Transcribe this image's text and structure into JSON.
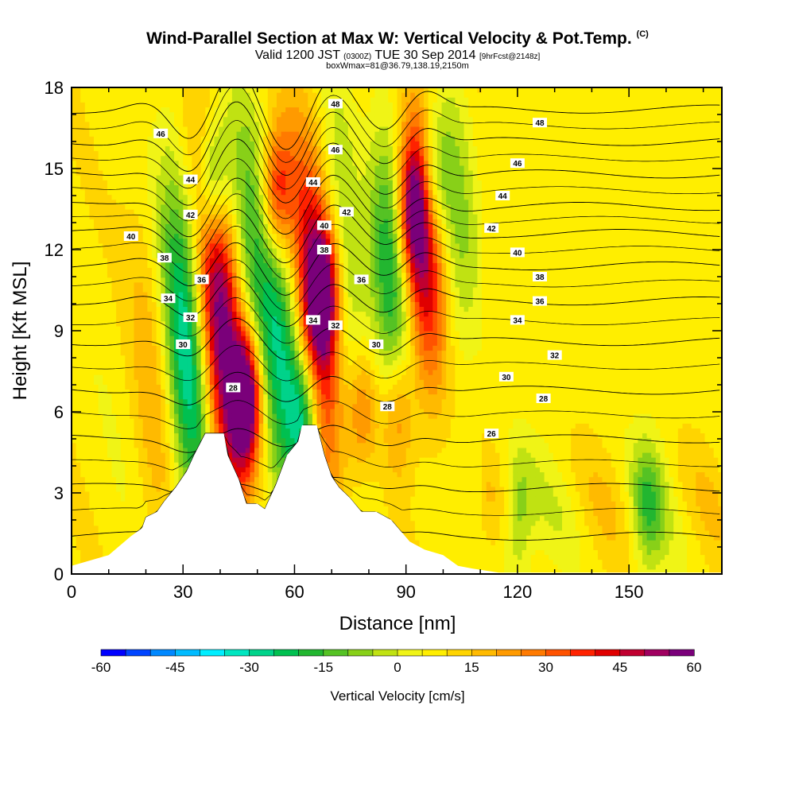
{
  "chart_data": {
    "type": "heatmap",
    "title": "Wind-Parallel Section at Max W: Vertical Velocity & Pot.Temp.",
    "title_suffix": "(C)",
    "subtitle_valid": "Valid 1200 JST",
    "subtitle_utc": "(0300Z)",
    "subtitle_date": "TUE 30 Sep 2014",
    "subtitle_fcst": "[9hrFcst@2148z]",
    "subtitle2": "boxWmax=81@36.79,138.19,2150m",
    "xlabel": "Distance [nm]",
    "ylabel": "Height [Kft MSL]",
    "xlim": [
      0,
      175
    ],
    "ylim": [
      0,
      18
    ],
    "x_ticks": [
      "0",
      "30",
      "60",
      "90",
      "120",
      "150"
    ],
    "y_ticks": [
      "0",
      "3",
      "6",
      "9",
      "12",
      "15",
      "18"
    ],
    "colorbar": {
      "label": "Vertical Velocity [cm/s]",
      "min": -60,
      "max": 60,
      "step": 5,
      "tick_labels": [
        "-60",
        "-45",
        "-30",
        "-15",
        "0",
        "15",
        "30",
        "45",
        "60"
      ],
      "colors": [
        "#0000ff",
        "#0044ff",
        "#0088ff",
        "#00bbff",
        "#00eeff",
        "#00e6c0",
        "#00d38a",
        "#00c050",
        "#22b630",
        "#55c224",
        "#88d018",
        "#c0e212",
        "#f0f416",
        "#ffee00",
        "#ffd400",
        "#ffba00",
        "#ff9a00",
        "#ff7a00",
        "#ff5200",
        "#ff2200",
        "#e00000",
        "#c00030",
        "#a00060",
        "#7a007a"
      ]
    },
    "terrain_kft": [
      [
        0,
        0.3
      ],
      [
        10,
        0.7
      ],
      [
        16,
        1.4
      ],
      [
        19,
        1.7
      ],
      [
        20,
        2.1
      ],
      [
        23,
        2.3
      ],
      [
        25,
        2.7
      ],
      [
        28,
        3.2
      ],
      [
        31,
        3.8
      ],
      [
        33,
        4.4
      ],
      [
        36,
        5.2
      ],
      [
        41,
        5.2
      ],
      [
        42,
        4.4
      ],
      [
        45,
        3.5
      ],
      [
        47,
        2.6
      ],
      [
        50,
        2.6
      ],
      [
        52,
        2.4
      ],
      [
        55,
        3.3
      ],
      [
        58,
        4.4
      ],
      [
        61,
        4.9
      ],
      [
        62,
        5.5
      ],
      [
        66,
        5.5
      ],
      [
        68,
        4.4
      ],
      [
        70,
        3.6
      ],
      [
        72,
        3.2
      ],
      [
        75,
        2.8
      ],
      [
        78,
        2.3
      ],
      [
        82,
        2.3
      ],
      [
        86,
        2.0
      ],
      [
        91,
        1.2
      ],
      [
        95,
        0.9
      ],
      [
        100,
        0.7
      ],
      [
        104,
        0.3
      ],
      [
        108,
        0.2
      ],
      [
        115,
        0.05
      ],
      [
        175,
        0.05
      ]
    ],
    "w_field": {
      "background_cm_s": 8,
      "features": [
        {
          "x": 47,
          "z": 6.5,
          "w": 58
        },
        {
          "x": 38,
          "z": 14.5,
          "w": -35
        },
        {
          "x": 55,
          "z": 14,
          "w": 35
        },
        {
          "x": 68,
          "z": 10.5,
          "w": 38
        },
        {
          "x": 63,
          "z": 6,
          "w": -30
        },
        {
          "x": 78,
          "z": 6,
          "w": 22
        },
        {
          "x": 88,
          "z": 6,
          "w": 20
        },
        {
          "x": 92,
          "z": 13.5,
          "w": 35
        },
        {
          "x": 97,
          "z": 14.5,
          "w": -25
        },
        {
          "x": 120,
          "z": 2,
          "w": -18
        },
        {
          "x": 155,
          "z": 2.5,
          "w": -18
        }
      ]
    },
    "theta_contours": {
      "units": "C",
      "levels": [
        26,
        28,
        30,
        32,
        34,
        36,
        38,
        40,
        42,
        44,
        46,
        48
      ],
      "labels": [
        {
          "x": 43.5,
          "z": 6.9,
          "text": "28"
        },
        {
          "x": 85,
          "z": 6.2,
          "text": "28"
        },
        {
          "x": 127,
          "z": 6.5,
          "text": "28"
        },
        {
          "x": 113,
          "z": 5.2,
          "text": "26"
        },
        {
          "x": 30,
          "z": 8.5,
          "text": "30"
        },
        {
          "x": 82,
          "z": 8.5,
          "text": "30"
        },
        {
          "x": 117,
          "z": 7.3,
          "text": "30"
        },
        {
          "x": 32,
          "z": 9.5,
          "text": "32"
        },
        {
          "x": 71,
          "z": 9.2,
          "text": "32"
        },
        {
          "x": 130,
          "z": 8.1,
          "text": "32"
        },
        {
          "x": 26,
          "z": 10.2,
          "text": "34"
        },
        {
          "x": 65,
          "z": 9.4,
          "text": "34"
        },
        {
          "x": 120,
          "z": 9.4,
          "text": "34"
        },
        {
          "x": 35,
          "z": 10.9,
          "text": "36"
        },
        {
          "x": 78,
          "z": 10.9,
          "text": "36"
        },
        {
          "x": 126,
          "z": 10.1,
          "text": "36"
        },
        {
          "x": 25,
          "z": 11.7,
          "text": "38"
        },
        {
          "x": 68,
          "z": 12.0,
          "text": "38"
        },
        {
          "x": 126,
          "z": 11.0,
          "text": "38"
        },
        {
          "x": 16,
          "z": 12.5,
          "text": "40"
        },
        {
          "x": 68,
          "z": 12.9,
          "text": "40"
        },
        {
          "x": 120,
          "z": 11.9,
          "text": "40"
        },
        {
          "x": 32,
          "z": 13.3,
          "text": "42"
        },
        {
          "x": 74,
          "z": 13.4,
          "text": "42"
        },
        {
          "x": 113,
          "z": 12.8,
          "text": "42"
        },
        {
          "x": 32,
          "z": 14.6,
          "text": "44"
        },
        {
          "x": 65,
          "z": 14.5,
          "text": "44"
        },
        {
          "x": 116,
          "z": 14.0,
          "text": "44"
        },
        {
          "x": 24,
          "z": 16.3,
          "text": "46"
        },
        {
          "x": 71,
          "z": 15.7,
          "text": "46"
        },
        {
          "x": 120,
          "z": 15.2,
          "text": "46"
        },
        {
          "x": 71,
          "z": 17.4,
          "text": "48"
        },
        {
          "x": 126,
          "z": 16.7,
          "text": "48"
        }
      ]
    }
  }
}
